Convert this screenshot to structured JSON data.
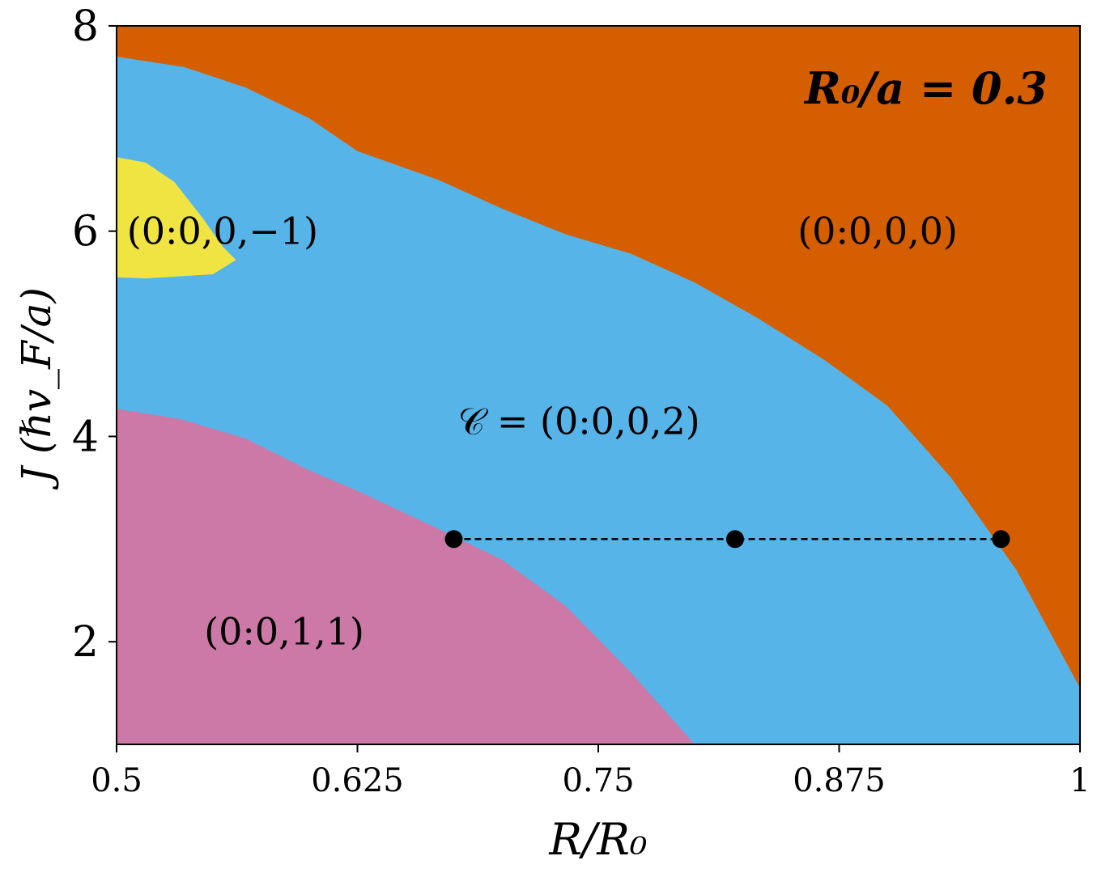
{
  "chart_data": {
    "type": "area",
    "title": "",
    "annotation": "R₀/a = 0.3",
    "xlabel": "R/R₀",
    "ylabel": "J  (ℏv_F/a)",
    "xlim": [
      0.5,
      1.0
    ],
    "ylim": [
      1.0,
      8.0
    ],
    "xticks": [
      0.5,
      0.625,
      0.75,
      0.875,
      1.0
    ],
    "xtick_labels": [
      "0.5",
      "0.625",
      "0.75",
      "0.875",
      "1"
    ],
    "yticks": [
      2,
      4,
      6,
      8
    ],
    "ytick_labels": [
      "2",
      "4",
      "6",
      "8"
    ],
    "grid": false,
    "regions": [
      {
        "label": "(0:0,0,0)",
        "color": "#d55e00",
        "label_at": [
          0.895,
          6.0
        ]
      },
      {
        "label": "𝒞 = (0:0,0,2)",
        "color": "#56b4e9",
        "label_at": [
          0.74,
          4.15
        ]
      },
      {
        "label": "(0:0,0,−1)",
        "color": "#f0e442",
        "label_at": [
          0.555,
          6.0
        ]
      },
      {
        "label": "(0:0,1,1)",
        "color": "#cc79a7",
        "label_at": [
          0.587,
          2.1
        ]
      }
    ],
    "boundaries": {
      "orange_blue": [
        [
          0.5,
          7.7
        ],
        [
          0.535,
          7.6
        ],
        [
          0.567,
          7.4
        ],
        [
          0.6,
          7.1
        ],
        [
          0.625,
          6.78
        ],
        [
          0.667,
          6.5
        ],
        [
          0.7,
          6.22
        ],
        [
          0.733,
          5.97
        ],
        [
          0.767,
          5.78
        ],
        [
          0.8,
          5.5
        ],
        [
          0.833,
          5.15
        ],
        [
          0.867,
          4.75
        ],
        [
          0.9,
          4.3
        ],
        [
          0.933,
          3.6
        ],
        [
          0.967,
          2.7
        ],
        [
          1.0,
          1.55
        ]
      ],
      "blue_pink": [
        [
          0.5,
          4.27
        ],
        [
          0.533,
          4.17
        ],
        [
          0.567,
          3.98
        ],
        [
          0.6,
          3.67
        ],
        [
          0.625,
          3.47
        ],
        [
          0.667,
          3.1
        ],
        [
          0.7,
          2.8
        ],
        [
          0.733,
          2.35
        ],
        [
          0.767,
          1.7
        ],
        [
          0.8,
          1.0
        ]
      ],
      "yellow_island": [
        [
          0.5,
          6.72
        ],
        [
          0.515,
          6.67
        ],
        [
          0.53,
          6.48
        ],
        [
          0.545,
          6.12
        ],
        [
          0.555,
          5.85
        ],
        [
          0.562,
          5.72
        ],
        [
          0.55,
          5.58
        ],
        [
          0.515,
          5.54
        ],
        [
          0.5,
          5.55
        ]
      ]
    },
    "series": [
      {
        "x": [
          0.675,
          0.821,
          0.959
        ],
        "y": [
          3.0,
          3.0,
          3.0
        ],
        "color": "#000000",
        "style": "dashed",
        "marker": "circle"
      }
    ]
  }
}
